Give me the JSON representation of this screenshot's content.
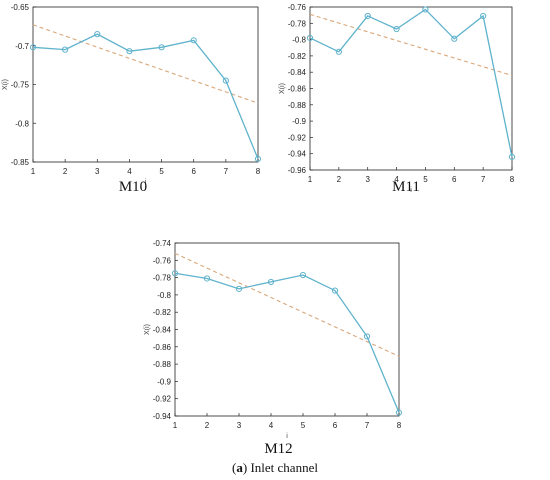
{
  "figure": {
    "caption_label": "a",
    "caption_text": "Inlet channel"
  },
  "colors": {
    "series": "#5fb3cc",
    "trend": "#d9a77a",
    "axis": "#222222"
  },
  "chart_data": [
    {
      "type": "line",
      "panel_label": "M10",
      "xlabel": "i",
      "ylabel": "X(i)",
      "x": [
        1,
        2,
        3,
        4,
        5,
        6,
        7,
        8
      ],
      "xticks": [
        "1",
        "2",
        "3",
        "4",
        "5",
        "6",
        "7",
        "8"
      ],
      "ylim": [
        -0.85,
        -0.65
      ],
      "yticks": [
        -0.85,
        -0.8,
        -0.75,
        -0.7,
        -0.65
      ],
      "ytick_labels": [
        "-0.85",
        "-0.8",
        "-0.75",
        "-0.7",
        "-0.65"
      ],
      "series": [
        {
          "values": [
            -0.702,
            -0.705,
            -0.685,
            -0.707,
            -0.702,
            -0.693,
            -0.745,
            -0.846
          ]
        }
      ],
      "trend": {
        "x": [
          1,
          8
        ],
        "values": [
          -0.673,
          -0.774
        ]
      }
    },
    {
      "type": "line",
      "panel_label": "M11",
      "xlabel": "i",
      "ylabel": "X(i)",
      "x": [
        1,
        2,
        3,
        4,
        5,
        6,
        7,
        8
      ],
      "xticks": [
        "1",
        "2",
        "3",
        "4",
        "5",
        "6",
        "7",
        "8"
      ],
      "ylim": [
        -0.96,
        -0.76
      ],
      "yticks": [
        -0.96,
        -0.94,
        -0.92,
        -0.9,
        -0.88,
        -0.86,
        -0.84,
        -0.82,
        -0.8,
        -0.78,
        -0.76
      ],
      "ytick_labels": [
        "-0.96",
        "-0.94",
        "-0.92",
        "-0.9",
        "-0.88",
        "-0.86",
        "-0.84",
        "-0.82",
        "-0.8",
        "-0.78",
        "-0.76"
      ],
      "series": [
        {
          "values": [
            -0.798,
            -0.815,
            -0.771,
            -0.787,
            -0.763,
            -0.799,
            -0.771,
            -0.944
          ]
        }
      ],
      "trend": {
        "x": [
          1,
          8
        ],
        "values": [
          -0.769,
          -0.844
        ]
      }
    },
    {
      "type": "line",
      "panel_label": "M12",
      "xlabel": "i",
      "ylabel": "X(i)",
      "x": [
        1,
        2,
        3,
        4,
        5,
        6,
        7,
        8
      ],
      "xticks": [
        "1",
        "2",
        "3",
        "4",
        "5",
        "6",
        "7",
        "8"
      ],
      "ylim": [
        -0.94,
        -0.74
      ],
      "yticks": [
        -0.94,
        -0.92,
        -0.9,
        -0.88,
        -0.86,
        -0.84,
        -0.82,
        -0.8,
        -0.78,
        -0.76,
        -0.74
      ],
      "ytick_labels": [
        "-0.94",
        "-0.92",
        "-0.9",
        "-0.88",
        "-0.86",
        "-0.84",
        "-0.82",
        "-0.8",
        "-0.78",
        "-0.76",
        "-0.74"
      ],
      "series": [
        {
          "values": [
            -0.775,
            -0.781,
            -0.793,
            -0.785,
            -0.777,
            -0.795,
            -0.848,
            -0.936
          ]
        }
      ],
      "trend": {
        "x": [
          1,
          8
        ],
        "values": [
          -0.752,
          -0.871
        ]
      }
    }
  ]
}
